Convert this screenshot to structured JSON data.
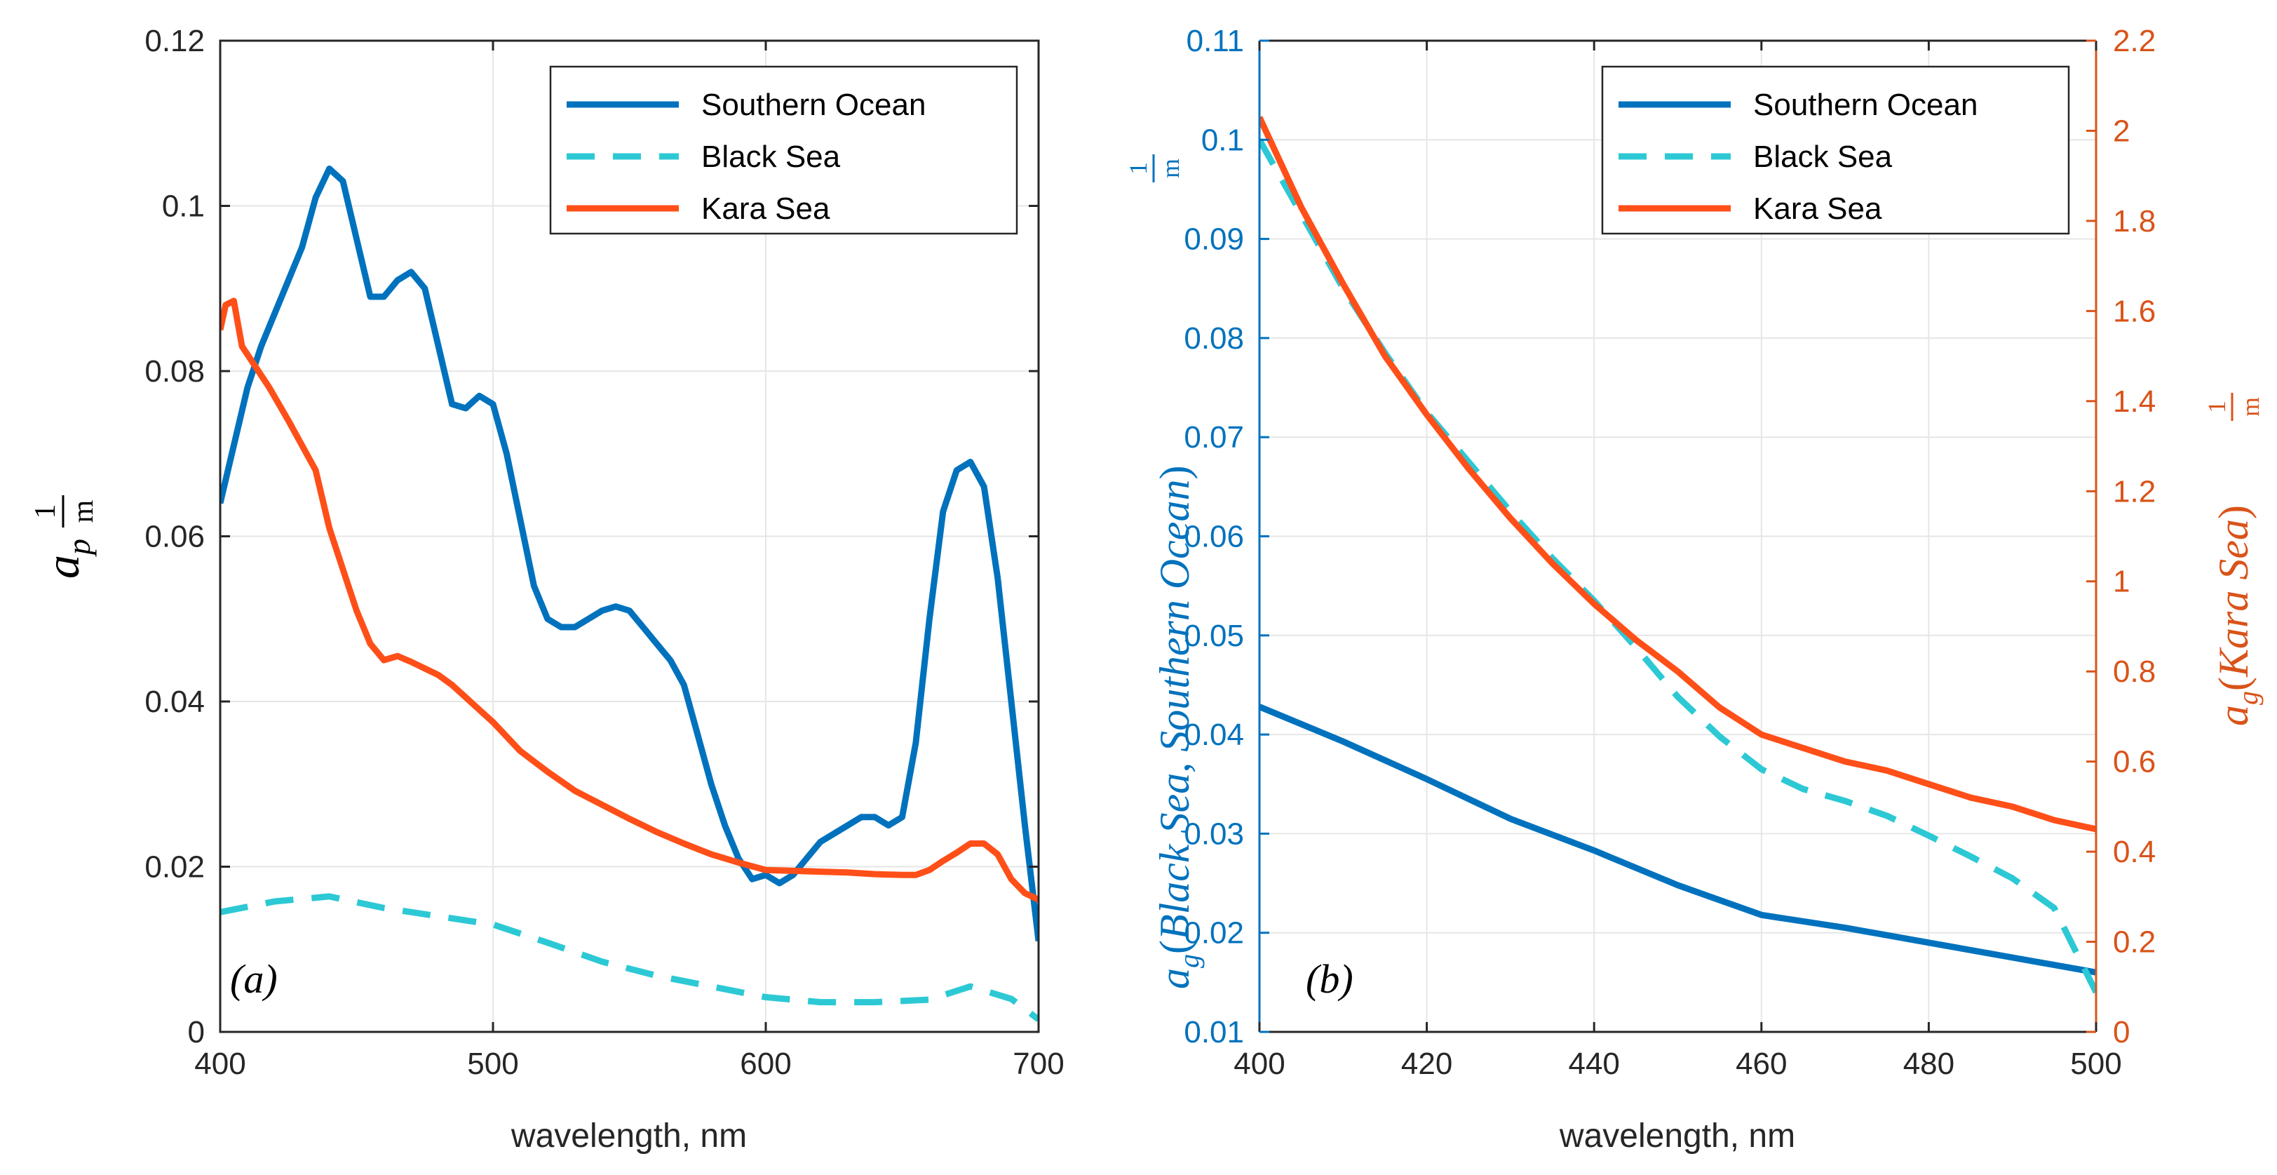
{
  "chart_data": [
    {
      "type": "line",
      "panel_label": "(a)",
      "xlabel": "wavelength, nm",
      "ylabel": "a_p 1/m",
      "xlim": [
        400,
        700
      ],
      "ylim": [
        0,
        0.12
      ],
      "xticks": [
        "400",
        "500",
        "600",
        "700"
      ],
      "yticks": [
        "0",
        "0.02",
        "0.04",
        "0.06",
        "0.08",
        "0.1",
        "0.12"
      ],
      "grid": true,
      "legend": [
        "Southern Ocean",
        "Black Sea",
        "Kara Sea"
      ],
      "legend_position": "top-right",
      "series": [
        {
          "name": "Southern Ocean",
          "color": "#0072BD",
          "style": "solid",
          "x": [
            400,
            405,
            410,
            415,
            420,
            425,
            430,
            435,
            440,
            445,
            450,
            455,
            460,
            465,
            470,
            475,
            480,
            485,
            490,
            495,
            500,
            505,
            510,
            515,
            520,
            525,
            530,
            535,
            540,
            545,
            550,
            555,
            560,
            565,
            570,
            575,
            580,
            585,
            590,
            595,
            600,
            605,
            610,
            615,
            620,
            625,
            630,
            635,
            640,
            645,
            650,
            655,
            660,
            665,
            670,
            675,
            680,
            685,
            690,
            695,
            700
          ],
          "y": [
            0.064,
            0.071,
            0.078,
            0.083,
            0.087,
            0.091,
            0.095,
            0.101,
            0.1045,
            0.103,
            0.096,
            0.089,
            0.089,
            0.091,
            0.092,
            0.09,
            0.083,
            0.076,
            0.0755,
            0.077,
            0.076,
            0.07,
            0.062,
            0.054,
            0.05,
            0.049,
            0.049,
            0.05,
            0.051,
            0.0515,
            0.051,
            0.049,
            0.047,
            0.045,
            0.042,
            0.036,
            0.03,
            0.025,
            0.021,
            0.0185,
            0.019,
            0.018,
            0.019,
            0.021,
            0.023,
            0.024,
            0.025,
            0.026,
            0.026,
            0.025,
            0.026,
            0.035,
            0.05,
            0.063,
            0.068,
            0.069,
            0.066,
            0.055,
            0.04,
            0.025,
            0.011
          ]
        },
        {
          "name": "Black Sea",
          "color": "#2CC9D5",
          "style": "dashed",
          "x": [
            400,
            420,
            440,
            460,
            480,
            500,
            520,
            540,
            560,
            580,
            600,
            620,
            640,
            660,
            675,
            690,
            700
          ],
          "y": [
            0.0145,
            0.0158,
            0.0164,
            0.015,
            0.014,
            0.013,
            0.0108,
            0.0085,
            0.0068,
            0.0055,
            0.0042,
            0.0036,
            0.0036,
            0.0039,
            0.0055,
            0.004,
            0.0015
          ]
        },
        {
          "name": "Kara Sea",
          "color": "#FF4F19",
          "style": "solid",
          "x": [
            400,
            402,
            405,
            408,
            412,
            418,
            425,
            430,
            435,
            440,
            445,
            450,
            455,
            460,
            465,
            470,
            475,
            480,
            485,
            490,
            495,
            500,
            510,
            520,
            530,
            540,
            550,
            560,
            570,
            580,
            590,
            600,
            610,
            620,
            630,
            640,
            650,
            655,
            660,
            665,
            670,
            675,
            680,
            685,
            690,
            695,
            700
          ],
          "y": [
            0.085,
            0.088,
            0.0885,
            0.083,
            0.081,
            0.078,
            0.074,
            0.071,
            0.068,
            0.061,
            0.056,
            0.051,
            0.047,
            0.045,
            0.0455,
            0.0448,
            0.044,
            0.0432,
            0.042,
            0.0405,
            0.039,
            0.0375,
            0.034,
            0.0315,
            0.0292,
            0.0275,
            0.0258,
            0.0242,
            0.0228,
            0.0215,
            0.0205,
            0.0196,
            0.0195,
            0.0194,
            0.0193,
            0.0191,
            0.019,
            0.019,
            0.0196,
            0.0207,
            0.0217,
            0.0228,
            0.0228,
            0.0215,
            0.0185,
            0.0168,
            0.016
          ]
        }
      ]
    },
    {
      "type": "line",
      "panel_label": "(b)",
      "xlabel": "wavelength, nm",
      "ylabel_left": "a_g(Black Sea, Southern Ocean) 1/m",
      "ylabel_right": "a_g(Kara Sea) 1/m",
      "xlim": [
        400,
        500
      ],
      "ylim_left": [
        0.01,
        0.11
      ],
      "ylim_right": [
        0,
        2.2
      ],
      "xticks": [
        "400",
        "420",
        "440",
        "460",
        "480",
        "500"
      ],
      "yticks_left": [
        "0.01",
        "0.02",
        "0.03",
        "0.04",
        "0.05",
        "0.06",
        "0.07",
        "0.08",
        "0.09",
        "0.1",
        "0.11"
      ],
      "yticks_right": [
        "0",
        "0.2",
        "0.4",
        "0.6",
        "0.8",
        "1",
        "1.2",
        "1.4",
        "1.6",
        "1.8",
        "2",
        "2.2"
      ],
      "grid": true,
      "legend": [
        "Southern Ocean",
        "Black Sea",
        "Kara Sea"
      ],
      "legend_position": "top-right",
      "series": [
        {
          "name": "Southern Ocean",
          "axis": "left",
          "color": "#0072BD",
          "style": "solid",
          "x": [
            400,
            410,
            420,
            430,
            440,
            450,
            460,
            470,
            480,
            490,
            500
          ],
          "y": [
            0.0428,
            0.0393,
            0.0355,
            0.0315,
            0.0283,
            0.0248,
            0.0218,
            0.0205,
            0.019,
            0.0175,
            0.016
          ]
        },
        {
          "name": "Black Sea",
          "axis": "left",
          "color": "#2CC9D5",
          "style": "dashed",
          "x": [
            400,
            405,
            410,
            415,
            420,
            425,
            430,
            435,
            440,
            445,
            450,
            455,
            460,
            465,
            470,
            475,
            480,
            485,
            490,
            495,
            500
          ],
          "y": [
            0.1,
            0.0925,
            0.085,
            0.0785,
            0.0725,
            0.0675,
            0.0625,
            0.0578,
            0.0535,
            0.0488,
            0.0438,
            0.0398,
            0.0365,
            0.0345,
            0.0333,
            0.0318,
            0.0298,
            0.0277,
            0.0255,
            0.0225,
            0.014
          ]
        },
        {
          "name": "Kara Sea",
          "axis": "right",
          "color": "#FF4F19",
          "style": "solid",
          "x": [
            400,
            405,
            410,
            415,
            420,
            425,
            430,
            435,
            440,
            445,
            450,
            455,
            460,
            465,
            470,
            475,
            480,
            485,
            490,
            495,
            500
          ],
          "y": [
            2.03,
            1.83,
            1.66,
            1.5,
            1.37,
            1.25,
            1.14,
            1.04,
            0.95,
            0.87,
            0.8,
            0.72,
            0.66,
            0.63,
            0.6,
            0.58,
            0.55,
            0.52,
            0.5,
            0.47,
            0.45
          ]
        }
      ]
    }
  ]
}
